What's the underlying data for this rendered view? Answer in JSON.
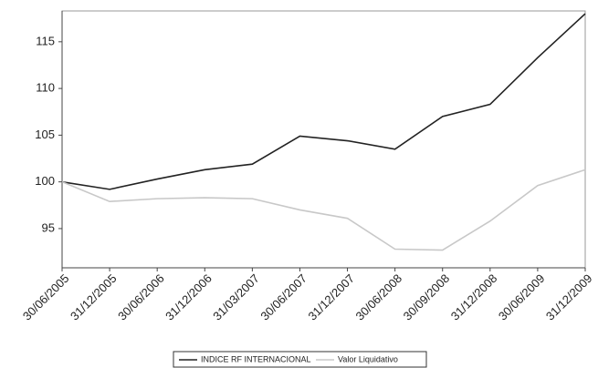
{
  "chart_data": {
    "type": "line",
    "categories": [
      "30/06/2005",
      "31/12/2005",
      "30/06/2006",
      "31/12/2006",
      "31/03/2007",
      "30/06/2007",
      "31/12/2007",
      "30/06/2008",
      "30/09/2008",
      "31/12/2008",
      "30/06/2009",
      "31/12/2009"
    ],
    "series": [
      {
        "name": "INDICE RF INTERNACIONAL",
        "color": "#222222",
        "values": [
          100,
          99.2,
          100.3,
          101.3,
          101.9,
          104.9,
          104.4,
          103.5,
          107,
          108.3,
          113.3,
          118
        ]
      },
      {
        "name": "Valor Liquidativo",
        "color": "#c8c8c8",
        "values": [
          100,
          97.9,
          98.2,
          98.3,
          98.2,
          97,
          96.1,
          92.8,
          92.7,
          95.8,
          99.6,
          101.3
        ]
      }
    ],
    "ylim": [
      90.8,
      118.3
    ],
    "yticks": [
      95,
      100,
      105,
      110,
      115
    ],
    "grid": false,
    "legend": "bottom"
  }
}
